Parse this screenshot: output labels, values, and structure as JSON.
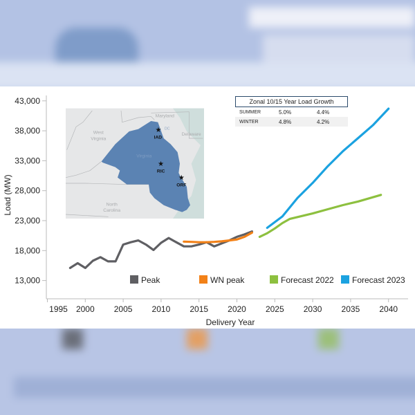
{
  "colors": {
    "peak": "#5f5f63",
    "wn_peak": "#f28118",
    "forecast_2022": "#8dc03f",
    "forecast_2023": "#1ba2e0",
    "map_region": "#5b83b3"
  },
  "growth_table": {
    "title": "Zonal 10/15 Year Load Growth",
    "rows": [
      {
        "season": "SUMMER",
        "ten_year": "5.0%",
        "fifteen_year": "4.4%"
      },
      {
        "season": "WINTER",
        "ten_year": "4.8%",
        "fifteen_year": "4.2%"
      }
    ]
  },
  "map": {
    "labels": {
      "maryland": "Maryland",
      "dc": "DC",
      "delaware": "Delaware",
      "west_virginia_1": "West",
      "west_virginia_2": "Virginia",
      "virginia": "Virginia",
      "north_carolina_1": "North",
      "north_carolina_2": "Carolina"
    },
    "markers": [
      {
        "name": "IAD"
      },
      {
        "name": "RIC"
      },
      {
        "name": "ORF"
      }
    ]
  },
  "chart_data": {
    "type": "line",
    "title": "",
    "xlabel": "Delivery Year",
    "ylabel": "Load (MW)",
    "xlim": [
      1995,
      2040
    ],
    "ylim": [
      13000,
      43000
    ],
    "x_ticks": [
      "1995",
      "2000",
      "2005",
      "2010",
      "2015",
      "2020",
      "2025",
      "2030",
      "2035",
      "2040"
    ],
    "y_ticks": [
      "13,000",
      "18,000",
      "23,000",
      "28,000",
      "33,000",
      "38,000",
      "43,000"
    ],
    "legend_position": "bottom-inside",
    "series": [
      {
        "name": "Peak",
        "color_key": "peak",
        "x": [
          1998,
          1999,
          2000,
          2001,
          2002,
          2003,
          2004,
          2005,
          2006,
          2007,
          2008,
          2009,
          2010,
          2011,
          2012,
          2013,
          2014,
          2015,
          2016,
          2017,
          2018,
          2019,
          2020,
          2021,
          2022
        ],
        "y": [
          15100,
          15900,
          15100,
          16300,
          16900,
          16200,
          16200,
          19000,
          19400,
          19700,
          19000,
          18100,
          19300,
          20100,
          19400,
          18700,
          18700,
          19000,
          19400,
          18700,
          19200,
          19700,
          20300,
          20700,
          21200
        ]
      },
      {
        "name": "WN peak",
        "color_key": "wn_peak",
        "x": [
          2013,
          2014,
          2015,
          2016,
          2017,
          2018,
          2019,
          2020,
          2021,
          2022
        ],
        "y": [
          19500,
          19450,
          19400,
          19400,
          19450,
          19550,
          19700,
          19850,
          20300,
          21000
        ]
      },
      {
        "name": "Forecast 2022",
        "color_key": "forecast_2022",
        "x": [
          2023,
          2024,
          2025,
          2026,
          2027,
          2028,
          2030,
          2032,
          2034,
          2036,
          2039
        ],
        "y": [
          20300,
          20900,
          21700,
          22600,
          23300,
          23600,
          24200,
          24900,
          25600,
          26200,
          27300
        ]
      },
      {
        "name": "Forecast 2023",
        "color_key": "forecast_2023",
        "x": [
          2024,
          2026,
          2028,
          2030,
          2032,
          2034,
          2036,
          2038,
          2040
        ],
        "y": [
          21800,
          23700,
          26800,
          29300,
          32100,
          34600,
          36800,
          39000,
          41700
        ]
      }
    ]
  }
}
